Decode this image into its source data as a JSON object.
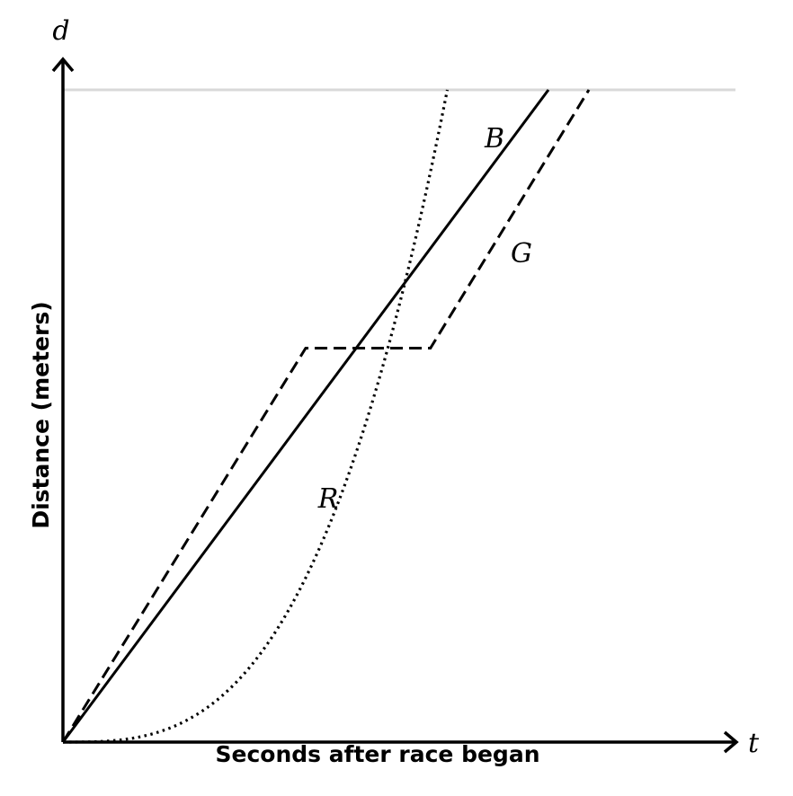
{
  "chart_data": {
    "type": "line",
    "xlabel": "Seconds after race began",
    "ylabel": "Distance (meters)",
    "x_axis_variable": "t",
    "y_axis_variable": "d",
    "xlim": [
      0,
      1
    ],
    "ylim": [
      0,
      1
    ],
    "finish_line": {
      "y": 1
    },
    "grid": false,
    "legend": "none",
    "series": [
      {
        "name": "B",
        "style": "solid",
        "x": [
          0,
          0.72
        ],
        "y": [
          0,
          1
        ]
      },
      {
        "name": "G",
        "style": "dashed",
        "x": [
          0,
          0.36,
          0.545,
          0.78
        ],
        "y": [
          0,
          0.604,
          0.604,
          1
        ]
      },
      {
        "name": "R",
        "style": "dotted",
        "curve": "power",
        "exponent": 3,
        "x_end": 0.57,
        "y_end": 1
      }
    ]
  }
}
